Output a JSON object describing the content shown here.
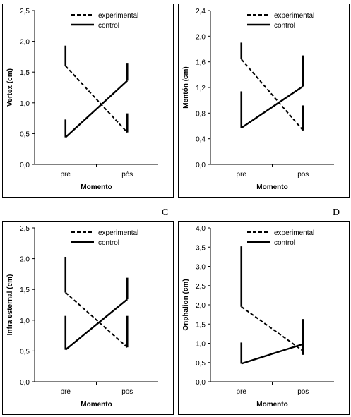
{
  "panel_letters": [
    "C",
    "D"
  ],
  "chart_data": [
    {
      "type": "line",
      "ylabel": "Vertex (cm)",
      "xlabel": "Momento",
      "categories": [
        "pre",
        "pós"
      ],
      "ylim": [
        0,
        2.5
      ],
      "yticks": [
        "0,0",
        "0,5",
        "1,0",
        "1,5",
        "2,0",
        "2,5"
      ],
      "ytick_values": [
        0,
        0.5,
        1.0,
        1.5,
        2.0,
        2.5
      ],
      "legend_position": "top-center",
      "series": [
        {
          "name": "experimental",
          "style": "dashed",
          "values": [
            1.6,
            0.52
          ],
          "error_upper": [
            1.93,
            0.83
          ],
          "error_dir": "up"
        },
        {
          "name": "control",
          "style": "solid",
          "values": [
            0.44,
            1.36
          ],
          "error_upper": [
            0.73,
            1.65
          ],
          "error_dir": "up"
        }
      ]
    },
    {
      "type": "line",
      "ylabel": "Mentón (cm)",
      "xlabel": "Momento",
      "categories": [
        "pre",
        "pos"
      ],
      "ylim": [
        0,
        2.4
      ],
      "yticks": [
        "0,0",
        "0,4",
        "0,8",
        "1,2",
        "1,6",
        "2,0",
        "2,4"
      ],
      "ytick_values": [
        0,
        0.4,
        0.8,
        1.2,
        1.6,
        2.0,
        2.4
      ],
      "legend_position": "top-center",
      "series": [
        {
          "name": "experimental",
          "style": "dashed",
          "values": [
            1.64,
            0.53
          ],
          "error_upper": [
            1.9,
            0.92
          ],
          "error_dir": "up"
        },
        {
          "name": "control",
          "style": "solid",
          "values": [
            0.57,
            1.22
          ],
          "error_upper": [
            1.14,
            1.7
          ],
          "error_dir": "up"
        }
      ]
    },
    {
      "type": "line",
      "ylabel": "Infra esternal (cm)",
      "xlabel": "Momento",
      "categories": [
        "pre",
        "pos"
      ],
      "ylim": [
        0,
        2.5
      ],
      "yticks": [
        "0,0",
        "0,5",
        "1,0",
        "1,5",
        "2,0",
        "2,5"
      ],
      "ytick_values": [
        0,
        0.5,
        1.0,
        1.5,
        2.0,
        2.5
      ],
      "legend_position": "top-center",
      "series": [
        {
          "name": "experimental",
          "style": "dashed",
          "values": [
            1.45,
            0.56
          ],
          "error_upper": [
            2.03,
            1.07
          ],
          "error_dir": "up"
        },
        {
          "name": "control",
          "style": "solid",
          "values": [
            0.52,
            1.34
          ],
          "error_upper": [
            1.07,
            1.69
          ],
          "error_dir": "up"
        }
      ]
    },
    {
      "type": "line",
      "ylabel": "Onphalion (cm)",
      "xlabel": "Momento",
      "categories": [
        "pre",
        "pos"
      ],
      "ylim": [
        0,
        4.0
      ],
      "yticks": [
        "0,0",
        "0,5",
        "1,0",
        "1,5",
        "2,0",
        "2,5",
        "3,0",
        "3,5",
        "4,0"
      ],
      "ytick_values": [
        0,
        0.5,
        1.0,
        1.5,
        2.0,
        2.5,
        3.0,
        3.5,
        4.0
      ],
      "legend_position": "top-center",
      "series": [
        {
          "name": "experimental",
          "style": "dashed",
          "values": [
            1.95,
            0.8
          ],
          "error_upper": [
            3.52,
            1.63
          ],
          "error_dir": "up"
        },
        {
          "name": "control",
          "style": "solid",
          "values": [
            0.47,
            0.98
          ],
          "error_upper": [
            1.02,
            0.7
          ],
          "error_dir": "mixed"
        }
      ]
    }
  ]
}
